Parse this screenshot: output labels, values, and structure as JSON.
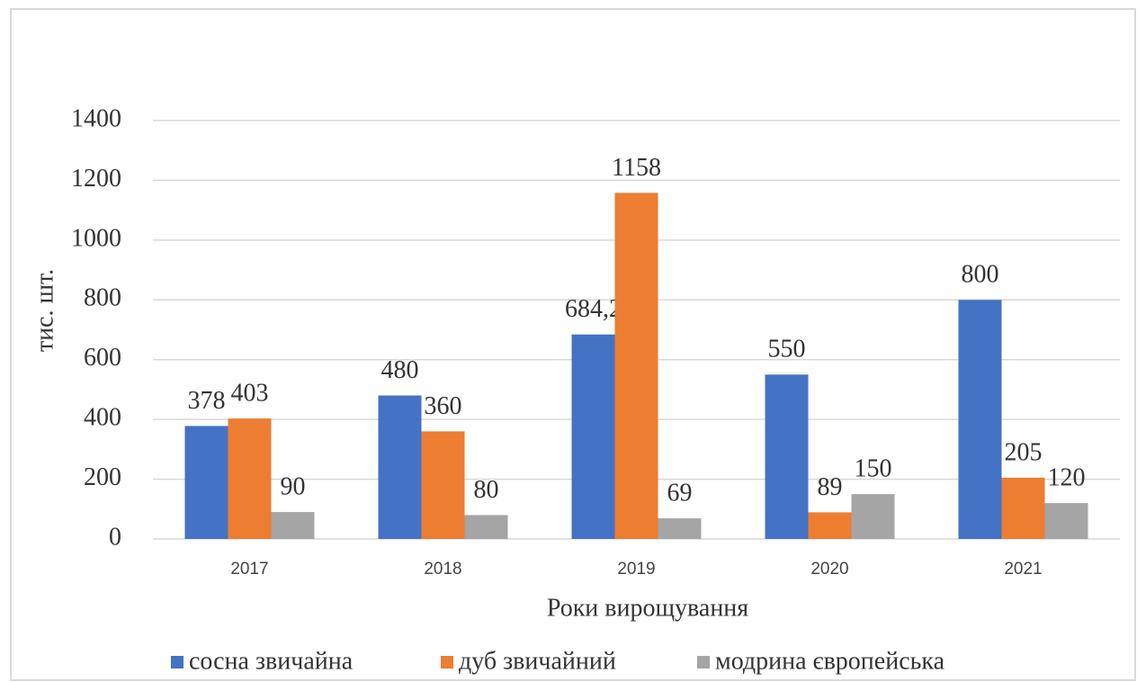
{
  "chart_data": {
    "type": "bar",
    "categories": [
      "2017",
      "2018",
      "2019",
      "2020",
      "2021"
    ],
    "series": [
      {
        "name": "сосна звичайна",
        "color": "#4472c4",
        "values": [
          378,
          480,
          684.2,
          550,
          800
        ],
        "value_labels": [
          "378",
          "480",
          "684,2",
          "550",
          "800"
        ]
      },
      {
        "name": "дуб звичайний",
        "color": "#ed7d31",
        "values": [
          403,
          360,
          1158,
          89,
          205
        ]
      },
      {
        "name": "модрина європейська",
        "color": "#a5a5a5",
        "values": [
          90,
          80,
          69,
          150,
          120
        ]
      }
    ],
    "ylabel": "тис. шт.",
    "xlabel": "Роки вирощування",
    "ylim": [
      0,
      1400
    ],
    "yticks": [
      0,
      200,
      400,
      600,
      800,
      1000,
      1200,
      1400
    ],
    "grid": true,
    "legend": "bottom"
  }
}
